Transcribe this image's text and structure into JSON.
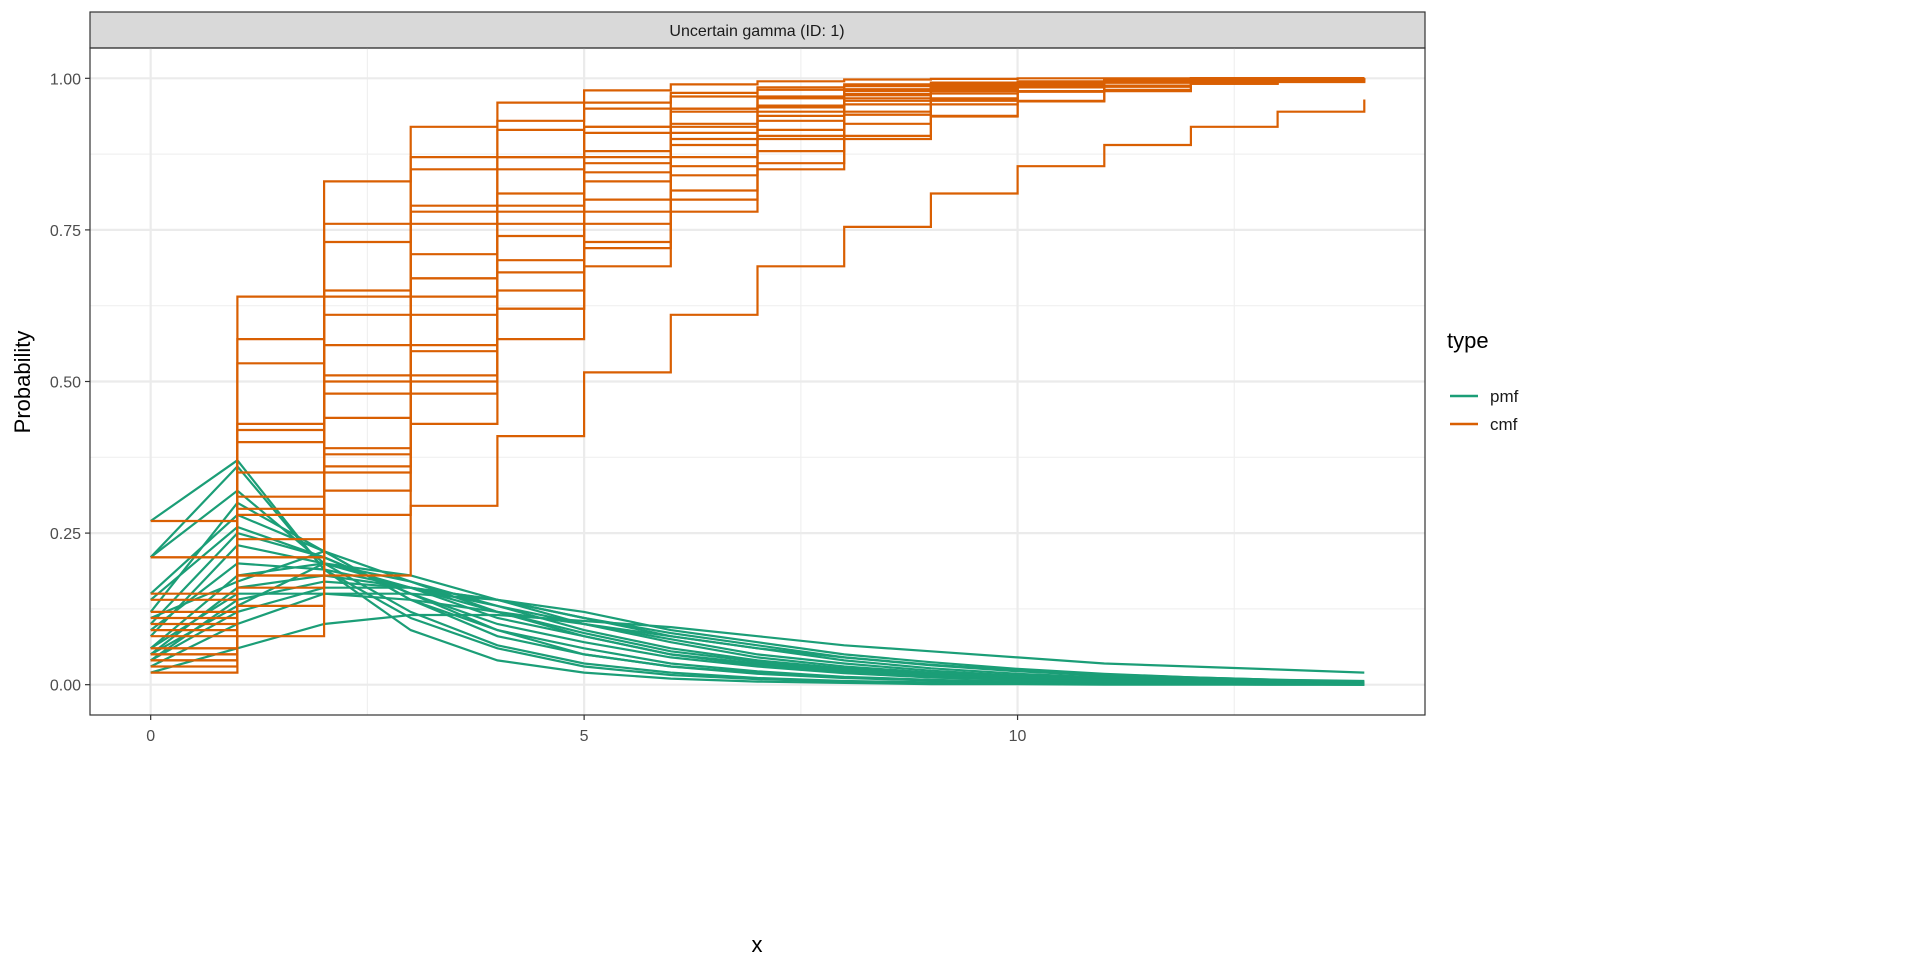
{
  "chart_data": {
    "type": "line",
    "title": "Uncertain gamma (ID: 1)",
    "xlabel": "x",
    "ylabel": "Probability",
    "xlim": [
      -0.7,
      14.7
    ],
    "ylim": [
      -0.05,
      1.05
    ],
    "x_ticks": [
      0,
      5,
      10
    ],
    "x_tick_labels": [
      "0",
      "5",
      "10"
    ],
    "y_ticks": [
      0,
      0.25,
      0.5,
      0.75,
      1.0
    ],
    "y_tick_labels": [
      "0.00",
      "0.25",
      "0.50",
      "0.75",
      "1.00"
    ],
    "grid": true,
    "legend": {
      "title": "type",
      "position": "right",
      "entries": [
        "pmf",
        "cmf"
      ]
    },
    "colors": {
      "pmf": "#1B9E77",
      "cmf": "#D95F02"
    },
    "note_cmf": "cmf drawn as step function = cumulative sum of each pmf sample",
    "x": [
      0,
      1,
      2,
      3,
      4,
      5,
      6,
      7,
      8,
      9,
      10,
      11,
      12,
      13,
      14
    ],
    "pmf_samples": [
      [
        0.27,
        0.37,
        0.19,
        0.09,
        0.04,
        0.02,
        0.01,
        0.005,
        0.003,
        0.001,
        0.001,
        0,
        0,
        0,
        0
      ],
      [
        0.21,
        0.36,
        0.19,
        0.11,
        0.06,
        0.03,
        0.016,
        0.009,
        0.005,
        0.003,
        0.002,
        0.001,
        0.001,
        0,
        0
      ],
      [
        0.21,
        0.32,
        0.2,
        0.12,
        0.065,
        0.035,
        0.02,
        0.011,
        0.006,
        0.004,
        0.002,
        0.001,
        0.001,
        0.001,
        0
      ],
      [
        0.15,
        0.28,
        0.22,
        0.14,
        0.08,
        0.05,
        0.03,
        0.018,
        0.011,
        0.007,
        0.004,
        0.003,
        0.002,
        0.001,
        0.001
      ],
      [
        0.12,
        0.3,
        0.22,
        0.14,
        0.09,
        0.05,
        0.03,
        0.02,
        0.012,
        0.007,
        0.004,
        0.002,
        0.001,
        0.001,
        0
      ],
      [
        0.1,
        0.25,
        0.21,
        0.15,
        0.1,
        0.07,
        0.045,
        0.03,
        0.019,
        0.012,
        0.008,
        0.005,
        0.003,
        0.002,
        0.001
      ],
      [
        0.08,
        0.23,
        0.2,
        0.16,
        0.11,
        0.08,
        0.05,
        0.035,
        0.022,
        0.014,
        0.009,
        0.006,
        0.004,
        0.002,
        0.001
      ],
      [
        0.06,
        0.18,
        0.2,
        0.17,
        0.13,
        0.09,
        0.06,
        0.04,
        0.027,
        0.018,
        0.011,
        0.007,
        0.005,
        0.003,
        0.002
      ],
      [
        0.05,
        0.16,
        0.18,
        0.16,
        0.13,
        0.1,
        0.075,
        0.05,
        0.035,
        0.023,
        0.015,
        0.01,
        0.006,
        0.004,
        0.003
      ],
      [
        0.04,
        0.14,
        0.17,
        0.16,
        0.14,
        0.11,
        0.08,
        0.06,
        0.04,
        0.027,
        0.018,
        0.012,
        0.008,
        0.005,
        0.003
      ],
      [
        0.04,
        0.12,
        0.16,
        0.16,
        0.14,
        0.11,
        0.085,
        0.065,
        0.045,
        0.032,
        0.022,
        0.015,
        0.01,
        0.007,
        0.004
      ],
      [
        0.03,
        0.1,
        0.15,
        0.15,
        0.14,
        0.12,
        0.09,
        0.07,
        0.05,
        0.037,
        0.026,
        0.018,
        0.012,
        0.008,
        0.005
      ],
      [
        0.06,
        0.15,
        0.15,
        0.14,
        0.12,
        0.1,
        0.08,
        0.06,
        0.045,
        0.033,
        0.024,
        0.017,
        0.012,
        0.008,
        0.006
      ],
      [
        0.02,
        0.06,
        0.1,
        0.115,
        0.115,
        0.105,
        0.095,
        0.08,
        0.065,
        0.055,
        0.045,
        0.035,
        0.03,
        0.025,
        0.02
      ],
      [
        0.09,
        0.2,
        0.19,
        0.16,
        0.12,
        0.085,
        0.055,
        0.038,
        0.025,
        0.016,
        0.01,
        0.006,
        0.004,
        0.002,
        0.001
      ],
      [
        0.14,
        0.26,
        0.21,
        0.15,
        0.09,
        0.06,
        0.035,
        0.022,
        0.013,
        0.008,
        0.005,
        0.003,
        0.002,
        0.001,
        0.001
      ],
      [
        0.05,
        0.13,
        0.2,
        0.18,
        0.14,
        0.1,
        0.07,
        0.045,
        0.03,
        0.02,
        0.013,
        0.008,
        0.005,
        0.003,
        0.002
      ],
      [
        0.11,
        0.17,
        0.22,
        0.17,
        0.12,
        0.08,
        0.05,
        0.032,
        0.02,
        0.012,
        0.008,
        0.005,
        0.003,
        0.002,
        0.001
      ]
    ]
  }
}
